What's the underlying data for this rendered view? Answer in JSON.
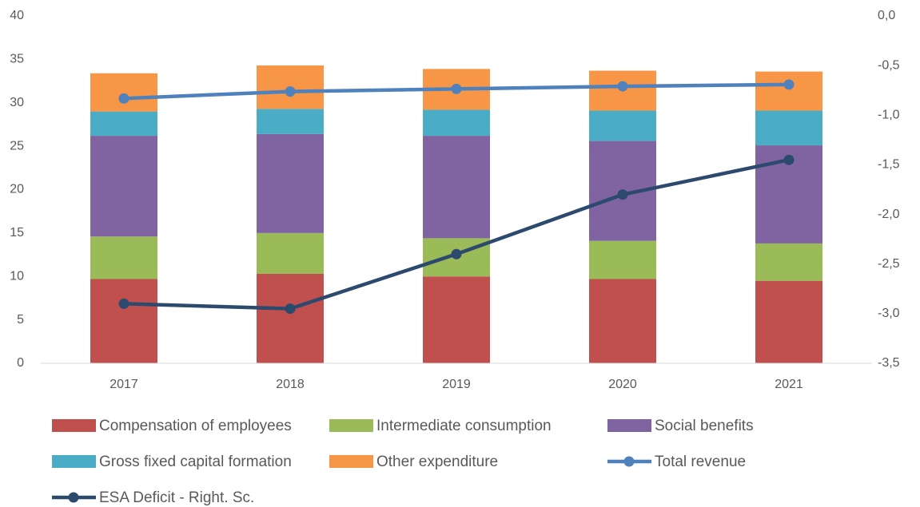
{
  "chart_data": {
    "type": "bar",
    "categories": [
      "2017",
      "2018",
      "2019",
      "2020",
      "2021"
    ],
    "series": [
      {
        "name": "Compensation of employees",
        "color": "#c0504d",
        "type": "bar",
        "values": [
          9.7,
          10.3,
          10.0,
          9.7,
          9.5
        ]
      },
      {
        "name": "Intermediate consumption",
        "color": "#9bbb59",
        "type": "bar",
        "values": [
          4.9,
          4.7,
          4.4,
          4.4,
          4.3
        ]
      },
      {
        "name": "Social benefits",
        "color": "#8064a2",
        "type": "bar",
        "values": [
          11.6,
          11.4,
          11.8,
          11.5,
          11.3
        ]
      },
      {
        "name": "Gross fixed capital formation",
        "color": "#4bacc6",
        "type": "bar",
        "values": [
          2.8,
          2.9,
          3.0,
          3.5,
          4.0
        ]
      },
      {
        "name": "Other expenditure",
        "color": "#f79646",
        "type": "bar",
        "values": [
          4.4,
          5.0,
          4.7,
          4.6,
          4.5
        ]
      },
      {
        "name": "Total revenue",
        "color": "#4f81bd",
        "type": "line",
        "values": [
          30.5,
          31.3,
          31.6,
          31.9,
          32.1
        ]
      },
      {
        "name": "ESA Deficit - Right. Sc.",
        "color": "#2c4a6e",
        "type": "line",
        "axis": "y2",
        "values": [
          -2.9,
          -2.95,
          -2.4,
          -1.8,
          -1.45
        ]
      }
    ],
    "stacked": true,
    "ylim": [
      0,
      40
    ],
    "yticks": [
      0,
      5,
      10,
      15,
      20,
      25,
      30,
      35,
      40
    ],
    "y2lim": [
      -3.5,
      0
    ],
    "y2ticks": [
      {
        "value": -3.5,
        "label": "-3,5"
      },
      {
        "value": -3.0,
        "label": "-3,0"
      },
      {
        "value": -2.5,
        "label": "-2,5"
      },
      {
        "value": -2.0,
        "label": "-2,0"
      },
      {
        "value": -1.5,
        "label": "-1,5"
      },
      {
        "value": -1.0,
        "label": "-1,0"
      },
      {
        "value": -0.5,
        "label": "-0,5"
      },
      {
        "value": 0,
        "label": "0,0"
      }
    ],
    "grid": false,
    "legend": "bottom"
  }
}
